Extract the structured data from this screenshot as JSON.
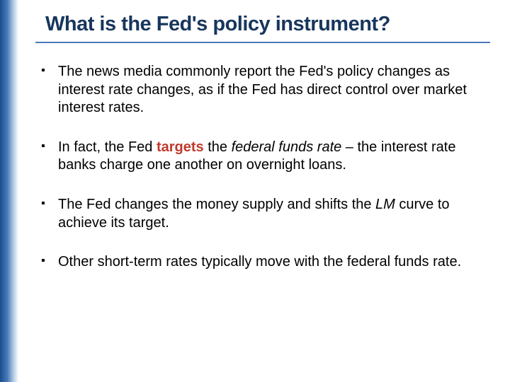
{
  "title": "What is the Fed's policy instrument?",
  "colors": {
    "title_color": "#17365d",
    "underline_color": "#4a7bb8",
    "accent_red": "#c0392b",
    "text_color": "#000000",
    "gradient_start": "#1a4d8f",
    "gradient_end": "#ffffff"
  },
  "typography": {
    "title_fontsize": 29,
    "body_fontsize": 20,
    "font_family": "Verdana, Arial, sans-serif"
  },
  "bullets": [
    {
      "pre": "The news media commonly report the Fed's policy changes as interest rate changes, as if the Fed has direct control over market interest rates.",
      "bold_red": "",
      "italic": "",
      "post": ""
    },
    {
      "pre": "In fact, the Fed ",
      "bold_red": "targets",
      "mid": " the ",
      "italic": "federal funds rate",
      "post": " – the interest rate banks charge one another on overnight loans."
    },
    {
      "pre": "The Fed changes the money supply and shifts the ",
      "bold_red": "",
      "mid": "",
      "italic": "LM",
      "post": " curve to achieve its target."
    },
    {
      "pre": "Other short-term rates typically move with the federal funds rate.",
      "bold_red": "",
      "mid": "",
      "italic": "",
      "post": ""
    }
  ]
}
